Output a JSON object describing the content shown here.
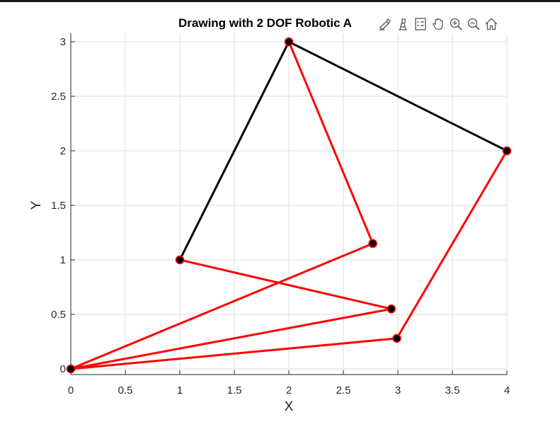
{
  "window": {
    "title": "Drawing with 2 DOF Robotic A"
  },
  "toolbar": {
    "items": [
      {
        "icon": "brush-icon",
        "label": "Brush"
      },
      {
        "icon": "data-tips-icon",
        "label": "Data Tips"
      },
      {
        "icon": "legend-icon",
        "label": "Legend"
      },
      {
        "icon": "pan-icon",
        "label": "Pan"
      },
      {
        "icon": "zoom-in-icon",
        "label": "Zoom In"
      },
      {
        "icon": "zoom-out-icon",
        "label": "Zoom Out"
      },
      {
        "icon": "home-icon",
        "label": "Restore View"
      }
    ]
  },
  "chart_data": {
    "type": "line",
    "title": "Drawing with 2 DOF Robotic A",
    "xlabel": "X",
    "ylabel": "Y",
    "xlim": [
      0,
      4
    ],
    "ylim": [
      0,
      3
    ],
    "grid": true,
    "xticks": [
      "0",
      "0.5",
      "1",
      "1.5",
      "2",
      "2.5",
      "3",
      "3.5",
      "4"
    ],
    "yticks": [
      "0",
      "0.5",
      "1",
      "1.5",
      "2",
      "2.5",
      "3"
    ],
    "colors": {
      "shape": "#000000",
      "arm": "#ff0000",
      "marker_fill": "#000000",
      "marker_edge": "#ff0000",
      "grid": "#dcdcdc"
    },
    "series": [
      {
        "role": "shape",
        "color": "#000000",
        "x": [
          1,
          2,
          4
        ],
        "y": [
          1,
          3,
          2
        ]
      },
      {
        "role": "arm-path",
        "color": "#ff0000",
        "x": [
          4,
          2.99,
          0,
          2.94,
          0,
          2.77,
          2
        ],
        "y": [
          2,
          0.28,
          0,
          0.55,
          0,
          1.15,
          3
        ]
      },
      {
        "role": "arm-path",
        "color": "#ff0000",
        "x": [
          1,
          2.94
        ],
        "y": [
          1,
          0.55
        ]
      }
    ],
    "points": [
      {
        "x": 0,
        "y": 0
      },
      {
        "x": 1,
        "y": 1
      },
      {
        "x": 2,
        "y": 3
      },
      {
        "x": 4,
        "y": 2
      },
      {
        "x": 2.77,
        "y": 1.15
      },
      {
        "x": 2.94,
        "y": 0.55
      },
      {
        "x": 2.99,
        "y": 0.28
      }
    ]
  }
}
